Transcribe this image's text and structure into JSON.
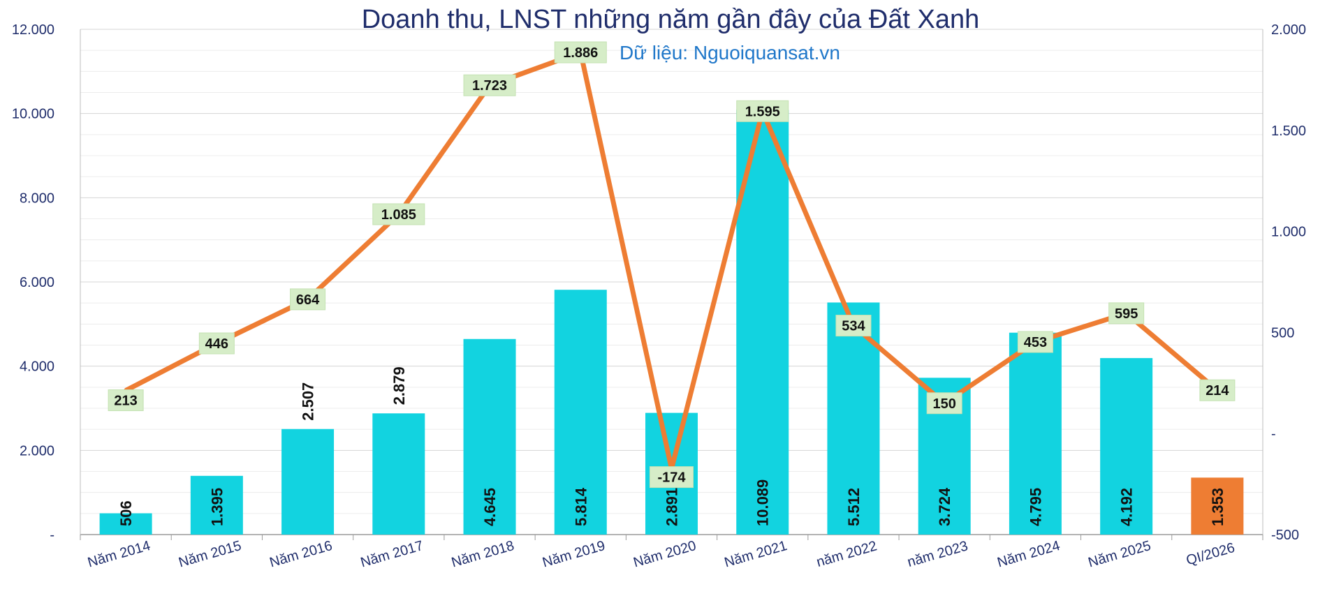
{
  "chart_data": {
    "type": "bar",
    "title": "Doanh thu, LNST những năm gần đây của Đất Xanh",
    "subtitle": "Dữ liệu: Nguoiquansat.vn",
    "categories": [
      "Năm 2014",
      "Năm 2015",
      "Năm 2016",
      "Năm 2017",
      "Năm 2018",
      "Năm 2019",
      "Năm 2020",
      "Năm 2021",
      "năm 2022",
      "năm 2023",
      "Năm 2024",
      "Năm 2025",
      "QI/2026"
    ],
    "series": [
      {
        "type": "bar",
        "axis": "left",
        "color": "#12d3e0",
        "highlight_color": "#ee7d33",
        "highlight_index": 12,
        "values": [
          506,
          1395,
          2507,
          2879,
          4645,
          5814,
          2891,
          10089,
          5512,
          3724,
          4795,
          4192,
          1353
        ],
        "labels": [
          "506",
          "1.395",
          "2.507",
          "2.879",
          "4.645",
          "5.814",
          "2.891",
          "10.089",
          "5.512",
          "3.724",
          "4.795",
          "4.192",
          "1.353"
        ],
        "label_vertical": true
      },
      {
        "type": "line",
        "axis": "right",
        "color": "#ee7d33",
        "values": [
          213,
          446,
          664,
          1085,
          1723,
          1886,
          -174,
          1595,
          534,
          150,
          453,
          595,
          214
        ],
        "labels": [
          "213",
          "446",
          "664",
          "1.085",
          "1.723",
          "1.886",
          "-174",
          "1.595",
          "534",
          "150",
          "453",
          "595",
          "214"
        ]
      }
    ],
    "y_left": {
      "min": 0,
      "max": 12000,
      "ticks": [
        0,
        2000,
        4000,
        6000,
        8000,
        10000,
        12000
      ],
      "tick_labels": [
        "-",
        "2.000",
        "4.000",
        "6.000",
        "8.000",
        "10.000",
        "12.000"
      ]
    },
    "y_right": {
      "min": -500,
      "max": 2000,
      "ticks": [
        -500,
        0,
        500,
        1000,
        1500,
        2000
      ],
      "tick_labels": [
        "-500",
        "-",
        "500",
        "1.000",
        "1.500",
        "2.000"
      ]
    },
    "grid": true,
    "legend": "none",
    "label_box_color": "#d6edc8",
    "text_color": "#1f2d6b",
    "subtitle_color": "#1f77c9"
  }
}
